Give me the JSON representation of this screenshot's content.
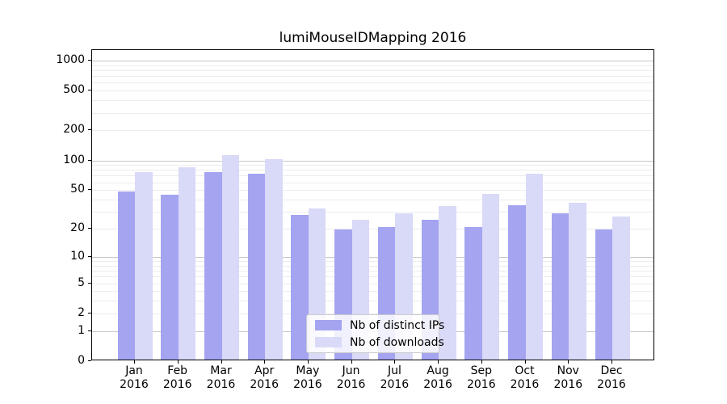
{
  "chart_data": {
    "type": "bar",
    "title": "lumiMouseIDMapping 2016",
    "categories": [
      "Jan",
      "Feb",
      "Mar",
      "Apr",
      "May",
      "Jun",
      "Jul",
      "Aug",
      "Sep",
      "Oct",
      "Nov",
      "Dec"
    ],
    "x_tick_year": "2016",
    "series": [
      {
        "name": "Nb of distinct IPs",
        "color": "#a4a4f1",
        "values": [
          47,
          43,
          73,
          71,
          27,
          19,
          20,
          24,
          20,
          34,
          28,
          19
        ]
      },
      {
        "name": "Nb of downloads",
        "color": "#d9d9f8",
        "values": [
          73,
          82,
          108,
          100,
          31,
          24,
          28,
          33,
          44,
          70,
          36,
          26
        ]
      }
    ],
    "y_axis": {
      "scale": "log1p",
      "tick_labels": [
        0,
        1,
        2,
        5,
        10,
        20,
        50,
        100,
        200,
        500,
        1000
      ],
      "major_gridlines": [
        1,
        10,
        100,
        1000
      ],
      "minor_gridlines": [
        2,
        3,
        4,
        5,
        6,
        7,
        8,
        9,
        20,
        30,
        40,
        50,
        60,
        70,
        80,
        90,
        200,
        300,
        400,
        500,
        600,
        700,
        800,
        900
      ],
      "range_top": 1270
    },
    "legend_position": "lower center",
    "grid": true
  },
  "colors": {
    "background": "#ffffff",
    "axis": "#000000",
    "major_grid": "#c8c8c8",
    "minor_grid": "#ececec",
    "legend_border": "#cccccc"
  }
}
